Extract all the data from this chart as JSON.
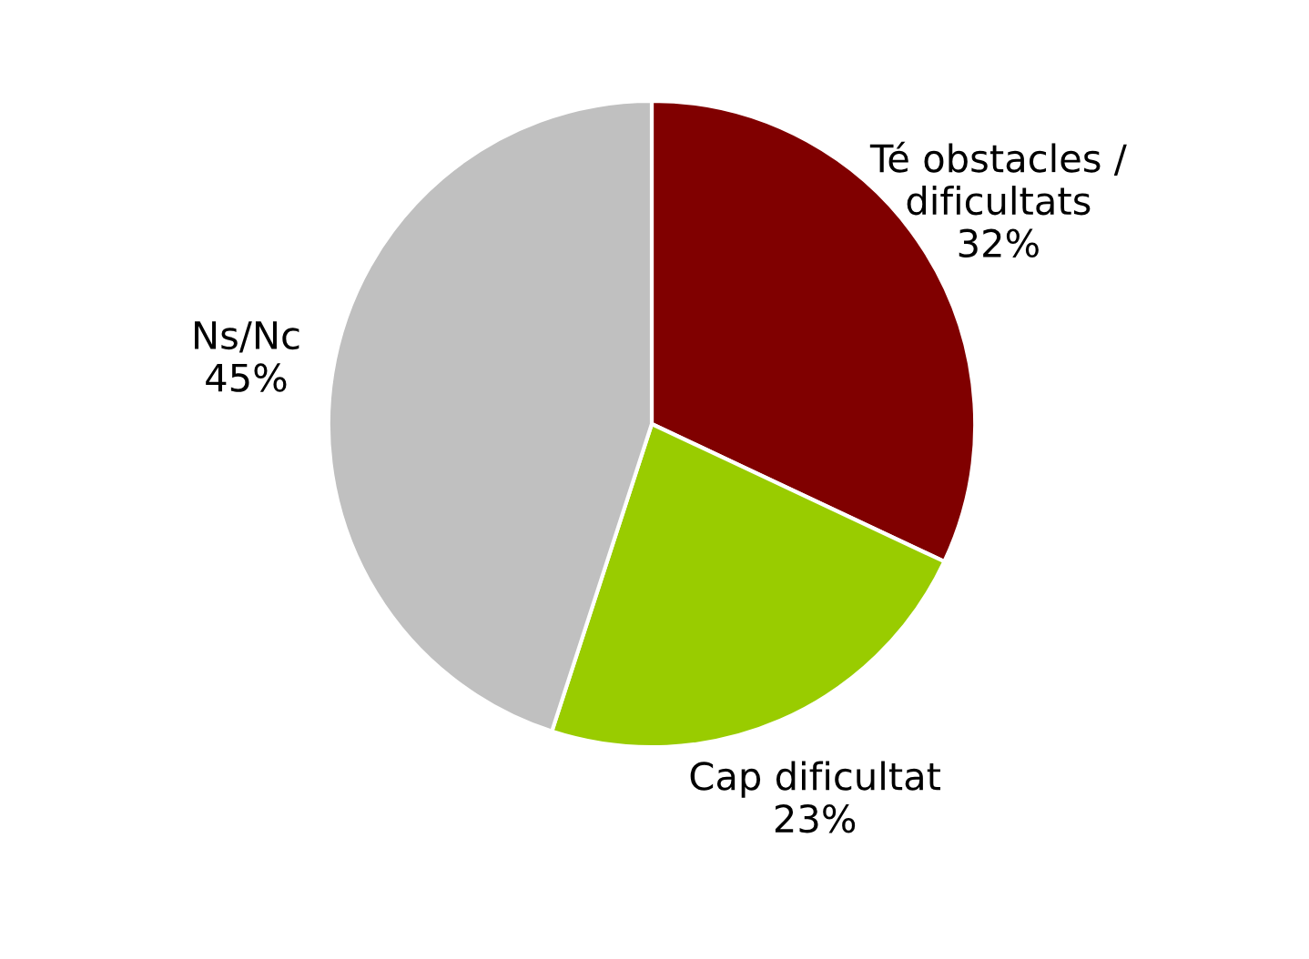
{
  "chart_data": {
    "type": "pie",
    "categories": [
      "Té obstacles /\ndificultats",
      "Cap dificultat",
      "Ns/Nc"
    ],
    "values": [
      32,
      23,
      45
    ],
    "colors": [
      "#800000",
      "#99cc00",
      "#c0c0c0"
    ],
    "value_labels": [
      "32%",
      "23%",
      "45%"
    ],
    "legend": false
  }
}
